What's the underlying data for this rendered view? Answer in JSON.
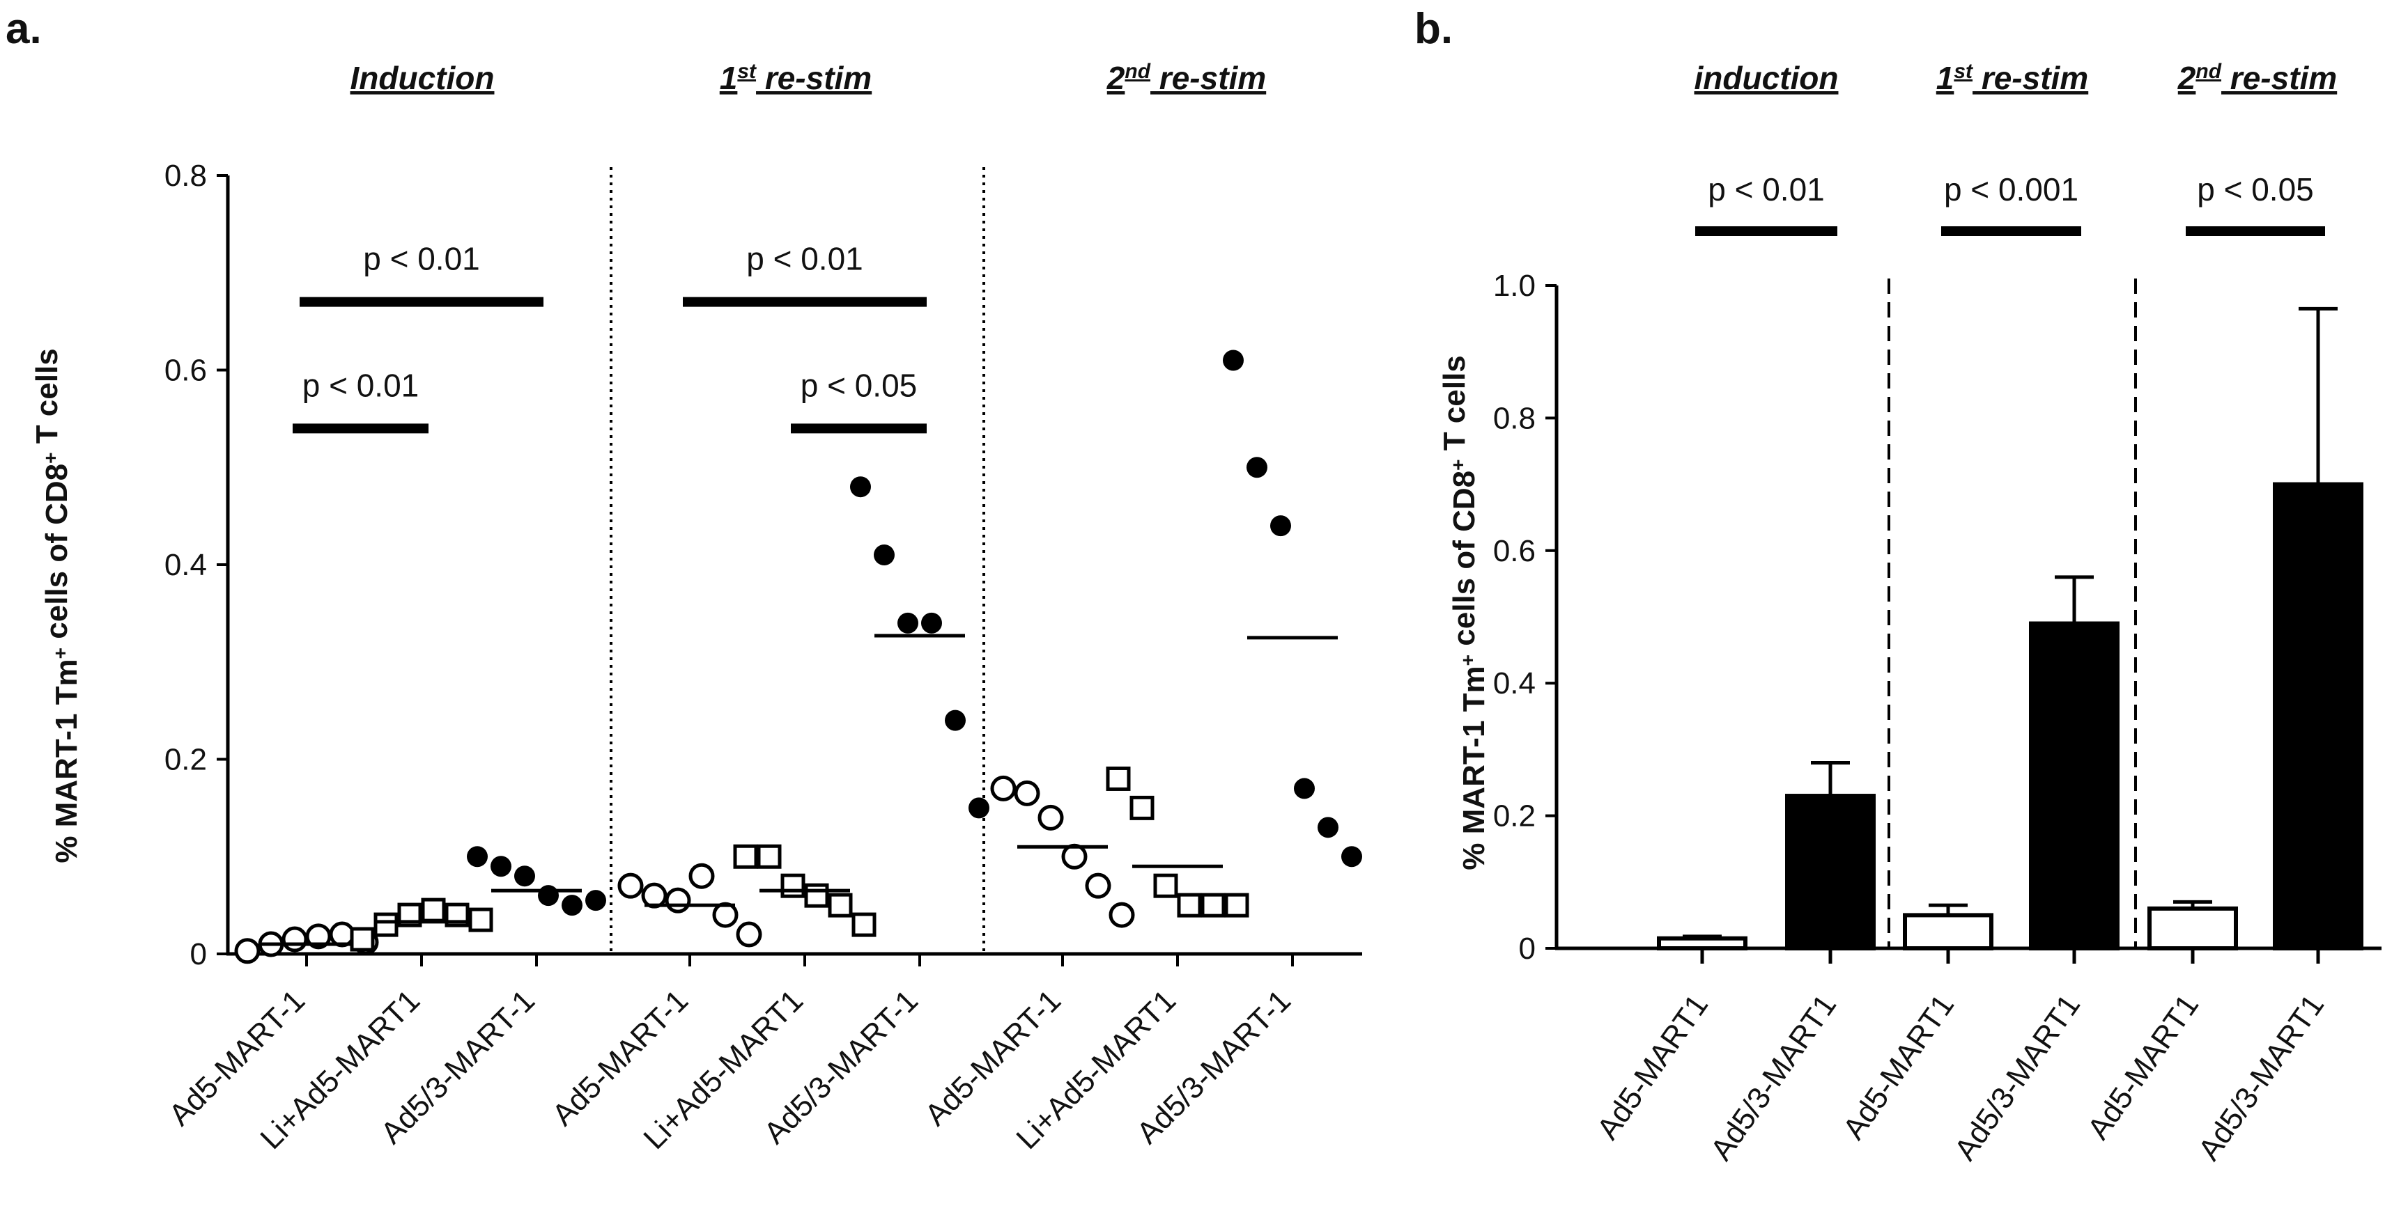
{
  "chart_data": [
    {
      "panel": "a.",
      "type": "scatter",
      "ylabel": "% MART-1 Tm⁺ cells of CD8⁺ T cells",
      "ylim": [
        0,
        0.8
      ],
      "yticks": [
        0,
        0.2,
        0.4,
        0.6,
        0.8
      ],
      "ytick_labels": [
        "0",
        "0.2",
        "0.4",
        "0.6",
        "0.8"
      ],
      "groups": [
        {
          "title": "Induction",
          "categories": [
            {
              "label": "Ad5-MART-1",
              "marker": "open-circle",
              "mean": 0.01,
              "values": [
                0.003,
                0.01,
                0.015,
                0.018,
                0.02,
                0.012
              ]
            },
            {
              "label": "Li+Ad5-MART1",
              "marker": "open-square",
              "mean": 0.033,
              "values": [
                0.015,
                0.03,
                0.04,
                0.045,
                0.04,
                0.035
              ]
            },
            {
              "label": "Ad5/3-MART-1",
              "marker": "filled-circle",
              "mean": 0.065,
              "values": [
                0.1,
                0.09,
                0.08,
                0.06,
                0.05,
                0.055
              ]
            }
          ],
          "comparisons": [
            {
              "text": "p < 0.01",
              "from": 0,
              "to": 2,
              "y": 0.67
            },
            {
              "text": "p < 0.01",
              "from": 0,
              "to": 1,
              "y": 0.54
            }
          ]
        },
        {
          "title": "1st re-stim",
          "title_base": "1",
          "title_sup": "st",
          "title_rest": " re-stim",
          "categories": [
            {
              "label": "Ad5-MART-1",
              "marker": "open-circle",
              "mean": 0.05,
              "values": [
                0.07,
                0.06,
                0.055,
                0.08,
                0.04,
                0.02
              ]
            },
            {
              "label": "Li+Ad5-MART1",
              "marker": "open-square",
              "mean": 0.065,
              "values": [
                0.1,
                0.1,
                0.07,
                0.06,
                0.05,
                0.03
              ]
            },
            {
              "label": "Ad5/3-MART-1",
              "marker": "filled-circle",
              "mean": 0.327,
              "values": [
                0.48,
                0.41,
                0.34,
                0.34,
                0.24,
                0.15
              ]
            }
          ],
          "comparisons": [
            {
              "text": "p < 0.01",
              "from": 0,
              "to": 2,
              "y": 0.67
            },
            {
              "text": "p < 0.05",
              "from": 1,
              "to": 2,
              "y": 0.54
            }
          ]
        },
        {
          "title": "2nd re-stim",
          "title_base": "2",
          "title_sup": "nd",
          "title_rest": " re-stim",
          "categories": [
            {
              "label": "Ad5-MART-1",
              "marker": "open-circle",
              "mean": 0.11,
              "values": [
                0.17,
                0.165,
                0.14,
                0.1,
                0.07,
                0.04
              ]
            },
            {
              "label": "Li+Ad5-MART1",
              "marker": "open-square",
              "mean": 0.09,
              "values": [
                0.18,
                0.15,
                0.07,
                0.05,
                0.05,
                0.05
              ]
            },
            {
              "label": "Ad5/3-MART-1",
              "marker": "filled-circle",
              "mean": 0.325,
              "values": [
                0.61,
                0.5,
                0.44,
                0.17,
                0.13,
                0.1
              ]
            }
          ],
          "comparisons": []
        }
      ]
    },
    {
      "panel": "b.",
      "type": "bar",
      "ylabel": "% MART-1 Tm⁺ cells of CD8⁺ T cells",
      "ylim": [
        0,
        1.0
      ],
      "yticks": [
        0,
        0.2,
        0.4,
        0.6,
        0.8,
        1.0
      ],
      "ytick_labels": [
        "0",
        "0.2",
        "0.4",
        "0.6",
        "0.8",
        "1.0"
      ],
      "groups": [
        {
          "title": "induction",
          "bars": [
            {
              "label": "Ad5-MART1",
              "fill": "open",
              "value": 0.015,
              "error": 0.003
            },
            {
              "label": "Ad5/3-MART1",
              "fill": "filled",
              "value": 0.23,
              "error": 0.05
            }
          ],
          "pvalue": "p < 0.01"
        },
        {
          "title": "1st re-stim",
          "title_base": "1",
          "title_sup": "st",
          "title_rest": " re-stim",
          "bars": [
            {
              "label": "Ad5-MART1",
              "fill": "open",
              "value": 0.05,
              "error": 0.015
            },
            {
              "label": "Ad5/3-MART1",
              "fill": "filled",
              "value": 0.49,
              "error": 0.07
            }
          ],
          "pvalue": "p < 0.001"
        },
        {
          "title": "2nd re-stim",
          "title_base": "2",
          "title_sup": "nd",
          "title_rest": " re-stim",
          "bars": [
            {
              "label": "Ad5-MART1",
              "fill": "open",
              "value": 0.06,
              "error": 0.01
            },
            {
              "label": "Ad5/3-MART1",
              "fill": "filled",
              "value": 0.7,
              "error": 0.265
            }
          ],
          "pvalue": "p < 0.05"
        }
      ]
    }
  ]
}
